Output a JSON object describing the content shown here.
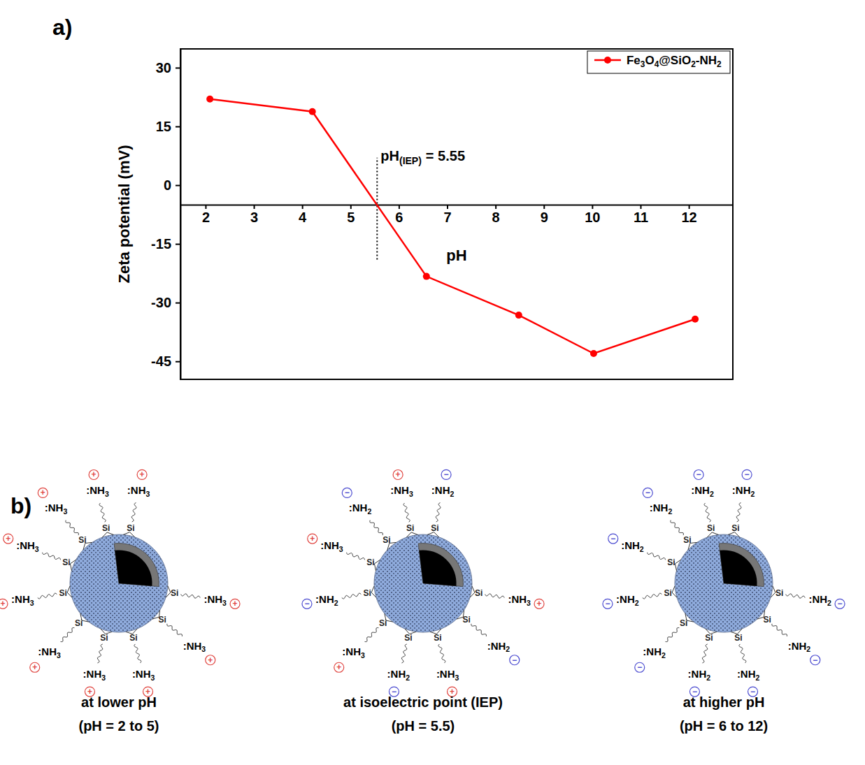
{
  "chart_data": {
    "type": "line",
    "x": [
      2.09,
      4.21,
      6.57,
      8.48,
      10.03,
      12.13
    ],
    "series": [
      {
        "name": "Fe3O4@SiO2-NH2",
        "color": "#ff0000",
        "marker": "circle",
        "line_style": "solid",
        "values": [
          22,
          18.8,
          -23.3,
          -33.2,
          -43,
          -34.2
        ]
      }
    ],
    "xlim": [
      1.48,
      12.91
    ],
    "xticks": [
      2,
      3,
      4,
      5,
      6,
      7,
      8,
      9,
      10,
      11,
      12
    ],
    "ylim": [
      -49.6,
      34.8
    ],
    "yticks": [
      30,
      15,
      0,
      -15,
      -30,
      -45
    ],
    "x_axis_at": -5,
    "x_label": "pH",
    "y_label": "Zeta potential (mV)",
    "legend": "upper right",
    "annotations": [
      {
        "x": 5.55,
        "y_range": [
          -19,
          7
        ],
        "line_style": "dotted",
        "text_parts": [
          "pH",
          "(IEP)",
          "= 5.55"
        ]
      }
    ]
  },
  "panel_labels": [
    "a)",
    "b)"
  ],
  "diagram": {
    "linker_label": "Si",
    "particles": [
      {
        "caption": [
          "at lower pH",
          "(pH = 2 to 5)"
        ],
        "groups": [
          {
            "label": ":NH3",
            "charge": "+"
          },
          {
            "label": ":NH3",
            "charge": "+"
          },
          {
            "label": ":NH3",
            "charge": "+"
          },
          {
            "label": ":NH3",
            "charge": "+"
          },
          {
            "label": ":NH3",
            "charge": "+"
          },
          {
            "label": ":NH3",
            "charge": "+"
          },
          {
            "label": ":NH3",
            "charge": "+"
          },
          {
            "label": ":NH3",
            "charge": "+"
          },
          {
            "label": ":NH3",
            "charge": "+"
          },
          {
            "label": ":NH3",
            "charge": "+"
          }
        ]
      },
      {
        "caption": [
          "at isoelectric point (IEP)",
          "(pH = 5.5)"
        ],
        "groups": [
          {
            "label": ":NH2",
            "charge": "−"
          },
          {
            "label": ":NH3",
            "charge": "+"
          },
          {
            "label": ":NH2",
            "charge": "−"
          },
          {
            "label": ":NH3",
            "charge": "+"
          },
          {
            "label": ":NH2",
            "charge": "−"
          },
          {
            "label": ":NH3",
            "charge": "+"
          },
          {
            "label": ":NH2",
            "charge": "−"
          },
          {
            "label": ":NH3",
            "charge": "+"
          },
          {
            "label": ":NH2",
            "charge": "−"
          },
          {
            "label": ":NH3",
            "charge": "+"
          }
        ]
      },
      {
        "caption": [
          "at higher pH",
          "(pH = 6 to 12)"
        ],
        "groups": [
          {
            "label": ":NH2",
            "charge": "−"
          },
          {
            "label": ":NH2",
            "charge": "−"
          },
          {
            "label": ":NH2",
            "charge": "−"
          },
          {
            "label": ":NH2",
            "charge": "−"
          },
          {
            "label": ":NH2",
            "charge": "−"
          },
          {
            "label": ":NH2",
            "charge": "−"
          },
          {
            "label": ":NH2",
            "charge": "−"
          },
          {
            "label": ":NH2",
            "charge": "−"
          },
          {
            "label": ":NH2",
            "charge": "−"
          },
          {
            "label": ":NH2",
            "charge": "−"
          }
        ]
      }
    ]
  }
}
